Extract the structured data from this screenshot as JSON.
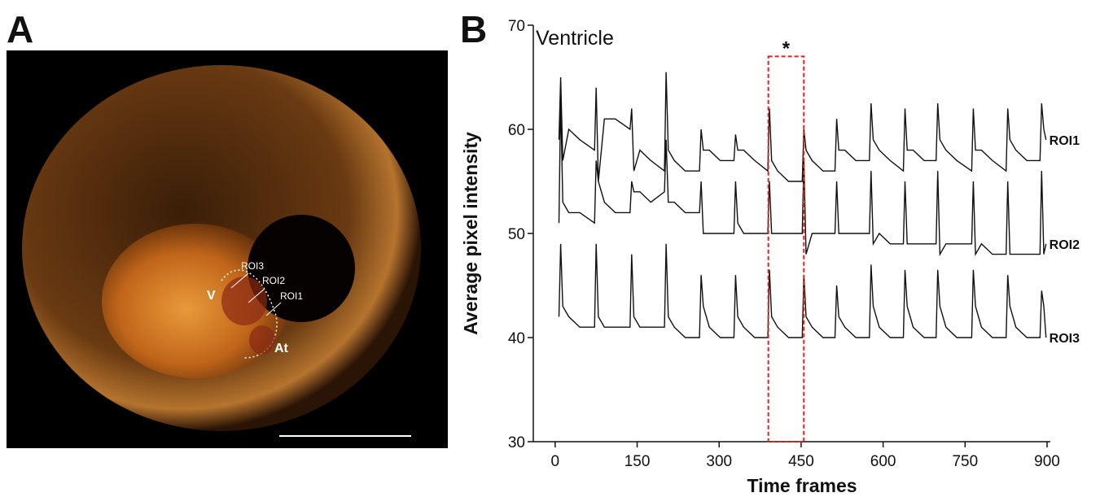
{
  "panel_a": {
    "label": "A",
    "labels": [
      "ROI3",
      "ROI2",
      "ROI1",
      "V",
      "At"
    ]
  },
  "chart_data": {
    "type": "line",
    "panel_label": "B",
    "title": "Ventricle",
    "x_label": "Time frames",
    "y_label": "Average pixel intensity",
    "xlim": [
      -40,
      900
    ],
    "ylim": [
      30,
      70
    ],
    "xticks": [
      0,
      150,
      300,
      450,
      600,
      750,
      900
    ],
    "yticks": [
      30,
      40,
      50,
      60,
      70
    ],
    "x": [
      7,
      10,
      14,
      25,
      45,
      72,
      75,
      79,
      90,
      110,
      137,
      140,
      144,
      155,
      175,
      200,
      203,
      207,
      218,
      238,
      264,
      267,
      271,
      282,
      302,
      327,
      330,
      334,
      345,
      365,
      389,
      392,
      396,
      407,
      427,
      452,
      455,
      459,
      470,
      490,
      512,
      515,
      519,
      530,
      550,
      575,
      578,
      582,
      593,
      613,
      637,
      640,
      644,
      655,
      675,
      697,
      700,
      704,
      715,
      735,
      762,
      765,
      769,
      780,
      800,
      825,
      828,
      832,
      843,
      863,
      887,
      890,
      894,
      898
    ],
    "series": [
      {
        "name": "ROI1",
        "color": "#111111",
        "values": [
          59,
          65,
          57,
          60,
          59,
          58,
          64,
          55,
          61,
          61,
          60,
          62,
          56,
          58,
          57,
          56,
          65.5,
          58,
          57,
          56,
          56,
          60,
          58,
          58,
          57,
          57,
          59.5,
          58,
          58,
          57,
          56,
          62,
          57,
          56,
          55,
          55,
          60,
          58,
          57,
          56,
          56,
          61,
          58,
          58,
          57,
          57,
          62.5,
          59,
          58,
          57,
          56,
          62,
          58,
          58,
          57,
          57,
          62.5,
          59,
          58,
          57,
          56,
          62,
          58,
          58,
          57,
          56,
          62,
          59,
          58,
          57,
          57,
          62.5,
          60,
          59
        ]
      },
      {
        "name": "ROI2",
        "color": "#111111",
        "values": [
          51,
          63,
          53,
          52,
          52,
          51,
          57,
          55,
          53,
          52,
          52,
          55,
          54,
          54,
          53,
          54,
          59,
          53,
          53,
          52,
          52,
          55,
          50,
          50,
          50,
          50,
          55,
          51,
          50,
          50,
          50,
          55,
          50,
          50,
          50,
          50,
          57,
          48,
          50,
          50,
          50,
          55,
          50,
          50,
          50,
          50,
          56,
          49,
          50,
          49,
          49,
          55,
          49,
          49,
          49,
          49,
          56,
          48,
          49,
          49,
          49,
          55,
          48,
          49,
          48,
          48,
          55,
          48,
          48,
          48,
          48,
          56,
          48,
          49
        ]
      },
      {
        "name": "ROI3",
        "color": "#111111",
        "values": [
          42,
          49,
          43,
          42,
          41,
          41,
          49,
          42,
          41,
          41,
          41,
          48,
          42,
          41,
          41,
          41,
          49,
          42,
          41,
          40,
          40,
          46,
          43,
          41,
          40,
          40,
          46,
          42,
          41,
          40,
          40,
          46.5,
          42,
          41,
          40,
          40,
          46,
          42,
          41,
          40,
          40,
          45,
          42,
          41,
          40,
          40,
          47,
          43,
          41,
          40,
          40,
          46.5,
          43,
          41,
          40,
          40,
          46.5,
          43,
          41,
          40,
          40,
          46.5,
          43,
          41,
          40,
          40,
          46,
          43,
          41,
          40,
          40,
          44.5,
          43,
          40
        ]
      }
    ],
    "highlight": {
      "x_range": [
        390,
        455
      ],
      "y_top": 67,
      "label": "*",
      "color": "#e8201c"
    }
  }
}
